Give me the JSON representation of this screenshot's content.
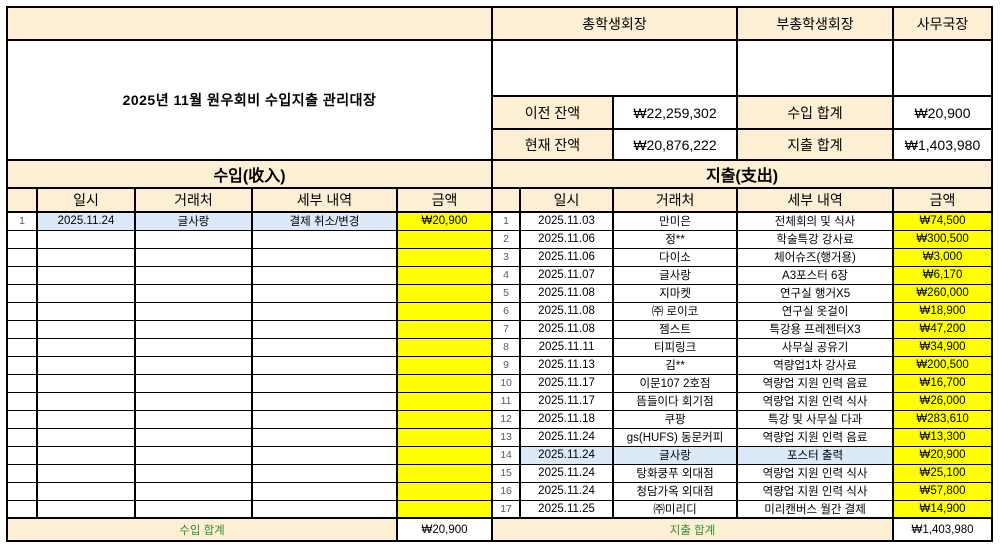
{
  "title": "2025년 11월 원우회비 수입지출 관리대장",
  "colors": {
    "beige": "#fcefd4",
    "yellow": "#ffff00",
    "blue": "#dce9f8",
    "green": "#2f8f2f"
  },
  "approval": {
    "president_label": "총학생회장",
    "vice_president_label": "부총학생회장",
    "secretary_label": "사무국장"
  },
  "summary": {
    "prev_balance_label": "이전 잔액",
    "prev_balance_value": "₩22,259,302",
    "current_balance_label": "현재 잔액",
    "current_balance_value": "₩20,876,222",
    "income_total_label": "수입 합계",
    "income_total_value": "₩20,900",
    "expense_total_label": "지출 합계",
    "expense_total_value": "₩1,403,980"
  },
  "income": {
    "section_title": "수입(收入)",
    "columns": [
      "",
      "일시",
      "거래처",
      "세부 내역",
      "금액"
    ],
    "rows": [
      {
        "n": "1",
        "date": "2025.11.24",
        "vendor": "글사랑",
        "detail": "결제 취소/변경",
        "amount": "₩20,900",
        "highlight": true
      }
    ],
    "empty_rows": 16,
    "total_label": "수입 합계",
    "total_value": "₩20,900"
  },
  "expense": {
    "section_title": "지출(支出)",
    "columns": [
      "",
      "일시",
      "거래처",
      "세부 내역",
      "금액"
    ],
    "rows": [
      {
        "n": "1",
        "date": "2025.11.03",
        "vendor": "만미은",
        "detail": "전체회의 및 식사",
        "amount": "₩74,500"
      },
      {
        "n": "2",
        "date": "2025.11.06",
        "vendor": "정**",
        "detail": "학술특강 강사료",
        "amount": "₩300,500"
      },
      {
        "n": "3",
        "date": "2025.11.06",
        "vendor": "다이소",
        "detail": "체어슈즈(행거용)",
        "amount": "₩3,000"
      },
      {
        "n": "4",
        "date": "2025.11.07",
        "vendor": "글사랑",
        "detail": "A3포스터 6장",
        "amount": "₩6,170"
      },
      {
        "n": "5",
        "date": "2025.11.08",
        "vendor": "지마켓",
        "detail": "연구실 행거X5",
        "amount": "₩260,000"
      },
      {
        "n": "6",
        "date": "2025.11.08",
        "vendor": "㈜ 로이코",
        "detail": "연구실 옷걸이",
        "amount": "₩18,900"
      },
      {
        "n": "7",
        "date": "2025.11.08",
        "vendor": "젬스트",
        "detail": "특강용 프레젠터X3",
        "amount": "₩47,200"
      },
      {
        "n": "8",
        "date": "2025.11.11",
        "vendor": "티피링크",
        "detail": "사무실 공유기",
        "amount": "₩34,900"
      },
      {
        "n": "9",
        "date": "2025.11.13",
        "vendor": "김**",
        "detail": "역량업1차 강사료",
        "amount": "₩200,500"
      },
      {
        "n": "10",
        "date": "2025.11.17",
        "vendor": "이문107 2호점",
        "detail": "역량업 지원 인력 음료",
        "amount": "₩16,700"
      },
      {
        "n": "11",
        "date": "2025.11.17",
        "vendor": "뜸들이다 회기점",
        "detail": "역량업 지원 인력 식사",
        "amount": "₩26,000"
      },
      {
        "n": "12",
        "date": "2025.11.18",
        "vendor": "쿠팡",
        "detail": "특강 및 사무실 다과",
        "amount": "₩283,610"
      },
      {
        "n": "13",
        "date": "2025.11.24",
        "vendor": "gs(HUFS) 동문커피",
        "detail": "역량업 지원 인력 음료",
        "amount": "₩13,300"
      },
      {
        "n": "14",
        "date": "2025.11.24",
        "vendor": "글사랑",
        "detail": "포스터 출력",
        "amount": "₩20,900",
        "highlight": true
      },
      {
        "n": "15",
        "date": "2025.11.24",
        "vendor": "탕화쿵푸 외대점",
        "detail": "역량업 지원 인력 식사",
        "amount": "₩25,100"
      },
      {
        "n": "16",
        "date": "2025.11.24",
        "vendor": "청담가옥 외대점",
        "detail": "역량업 지원 인력 식사",
        "amount": "₩57,800"
      },
      {
        "n": "17",
        "date": "2025.11.25",
        "vendor": "㈜미리디",
        "detail": "미리캔버스 월간 결제",
        "amount": "₩14,900"
      }
    ],
    "empty_rows": 0,
    "total_label": "지출 합계",
    "total_value": "₩1,403,980"
  }
}
